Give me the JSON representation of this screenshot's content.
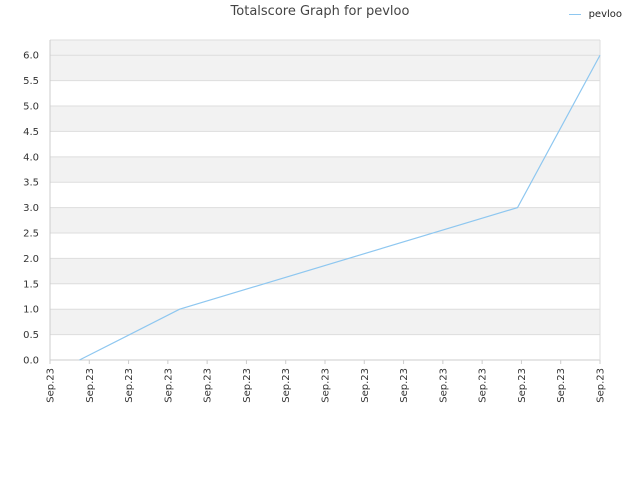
{
  "chart_data": {
    "type": "line",
    "title": "Totalscore Graph for pevloo",
    "xlabel": "",
    "ylabel": "",
    "legend_position": "top-right",
    "grid": true,
    "ylim": [
      0,
      6.3
    ],
    "yticks": [
      "0.0",
      "0.5",
      "1.0",
      "1.5",
      "2.0",
      "2.5",
      "3.0",
      "3.5",
      "4.0",
      "4.5",
      "5.0",
      "5.5",
      "6.0"
    ],
    "categories": [
      "Sep.23",
      "Sep.23",
      "Sep.23",
      "Sep.23",
      "Sep.23",
      "Sep.23",
      "Sep.23",
      "Sep.23",
      "Sep.23",
      "Sep.23",
      "Sep.23",
      "Sep.23",
      "Sep.23",
      "Sep.23",
      "Sep.23"
    ],
    "series": [
      {
        "name": "pevloo",
        "color": "#8ec7f0",
        "points": [
          {
            "x": 0.75,
            "y": 0
          },
          {
            "x": 3.3,
            "y": 1
          },
          {
            "x": 11.9,
            "y": 3
          },
          {
            "x": 14.0,
            "y": 6
          }
        ]
      }
    ]
  }
}
